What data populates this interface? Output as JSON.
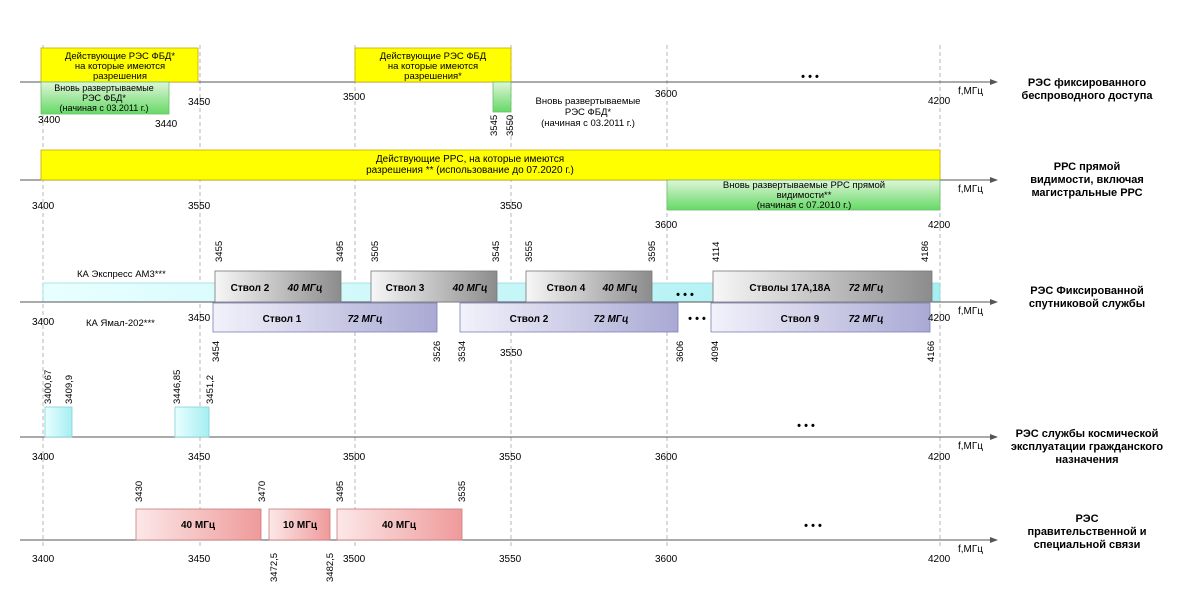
{
  "unit_label": "f,МГц",
  "ellipsis": "• • •",
  "colors": {
    "yellow": "#ffff00",
    "yellow_border": "#c8a800",
    "green_light": "#dff5d8",
    "green_dark": "#66d966",
    "cyan_light": "#e8ffff",
    "cyan_dark": "#a6eef2",
    "gray_light": "#f7f7f7",
    "gray_dark": "#8c8c8c",
    "purple_light": "#f2f2fb",
    "purple_dark": "#a9a9d4",
    "red_light": "#fce8e8",
    "red_dark": "#ef9a9a"
  },
  "rows": [
    {
      "id": "fbd",
      "service_label": [
        "РЭС фиксированного",
        "беспроводного доступа"
      ],
      "axis_labels": [
        "3400",
        "3440",
        "3450",
        "3500",
        "3545",
        "3550",
        "3600",
        "4200"
      ],
      "blocks": [
        {
          "name": "fbd-existing-1",
          "lines": [
            "Действующие РЭС ФБД*",
            "на которые имеются",
            "разрешения"
          ]
        },
        {
          "name": "fbd-existing-2",
          "lines": [
            "Действующие РЭС ФБД",
            "на которые имеются",
            "разрешения*"
          ]
        },
        {
          "name": "fbd-new-1",
          "lines": [
            "Вновь развертываемые",
            "РЭС ФБД*",
            "(начиная с 03.2011 г.)"
          ]
        },
        {
          "name": "fbd-new-2",
          "lines": []
        }
      ],
      "notes": [
        {
          "name": "fbd-new-2-note",
          "lines": [
            "Вновь развертываемые",
            "РЭС ФБД*",
            "(начиная с 03.2011 г.)"
          ]
        }
      ]
    },
    {
      "id": "rrs",
      "service_label": [
        "РРС прямой",
        "видимости, включая",
        "магистральные РРС"
      ],
      "axis_labels": [
        "3400",
        "3550",
        "3550",
        "3600",
        "4200"
      ],
      "blocks": [
        {
          "name": "rrs-existing",
          "lines": [
            "Действующие РРС, на которые имеются",
            "разрешения ** (использование до 07.2020 г.)"
          ]
        },
        {
          "name": "rrs-new",
          "lines": [
            "Вновь развертываемые РРС прямой",
            "видимости**",
            "(начиная с 07.2010 г.)"
          ]
        }
      ]
    },
    {
      "id": "sat",
      "service_label": [
        "РЭС Фиксированной",
        "спутниковой службы"
      ],
      "axis_labels": [
        "3400",
        "3450",
        "3550",
        "4200"
      ],
      "sat_names": [
        "КА Экспресс АМ3***",
        "КА  Ямал-202***"
      ],
      "top_ticks": [
        "3455",
        "3495",
        "3505",
        "3545",
        "3555",
        "3595",
        "4114",
        "4186"
      ],
      "bottom_ticks": [
        "3454",
        "3526",
        "3534",
        "3606",
        "4094",
        "4166"
      ],
      "upper_blocks": [
        {
          "name": "Ствол 2",
          "bw": "40 МГц"
        },
        {
          "name": "Ствол 3",
          "bw": "40 МГц"
        },
        {
          "name": "Ствол 4",
          "bw": "40 МГц"
        },
        {
          "name": "Стволы 17А,18А",
          "bw": "72 МГц"
        }
      ],
      "lower_blocks": [
        {
          "name": "Ствол 1",
          "bw": "72 МГц"
        },
        {
          "name": "Ствол 2",
          "bw": "72 МГц"
        },
        {
          "name": "Ствол 9",
          "bw": "72 МГц"
        }
      ]
    },
    {
      "id": "space",
      "service_label": [
        "РЭС службы космической",
        "эксплуатации гражданского",
        "назначения"
      ],
      "axis_labels": [
        "3400",
        "3450",
        "3500",
        "3550",
        "3600",
        "4200"
      ],
      "top_ticks": [
        "3400,67",
        "3409,9",
        "3446,85",
        "3451,2"
      ]
    },
    {
      "id": "gov",
      "service_label": [
        "РЭС",
        "правительственной и",
        "специальной связи"
      ],
      "axis_labels": [
        "3400",
        "3450",
        "3500",
        "3550",
        "3600",
        "4200"
      ],
      "top_ticks": [
        "3430",
        "3470",
        "3495",
        "3535"
      ],
      "bottom_ticks": [
        "3472,5",
        "3482,5"
      ],
      "blocks": [
        {
          "name": "gov-block-1",
          "label": "40 МГц"
        },
        {
          "name": "gov-block-2",
          "label": "10 МГц"
        },
        {
          "name": "gov-block-3",
          "label": "40 МГц"
        }
      ]
    }
  ]
}
